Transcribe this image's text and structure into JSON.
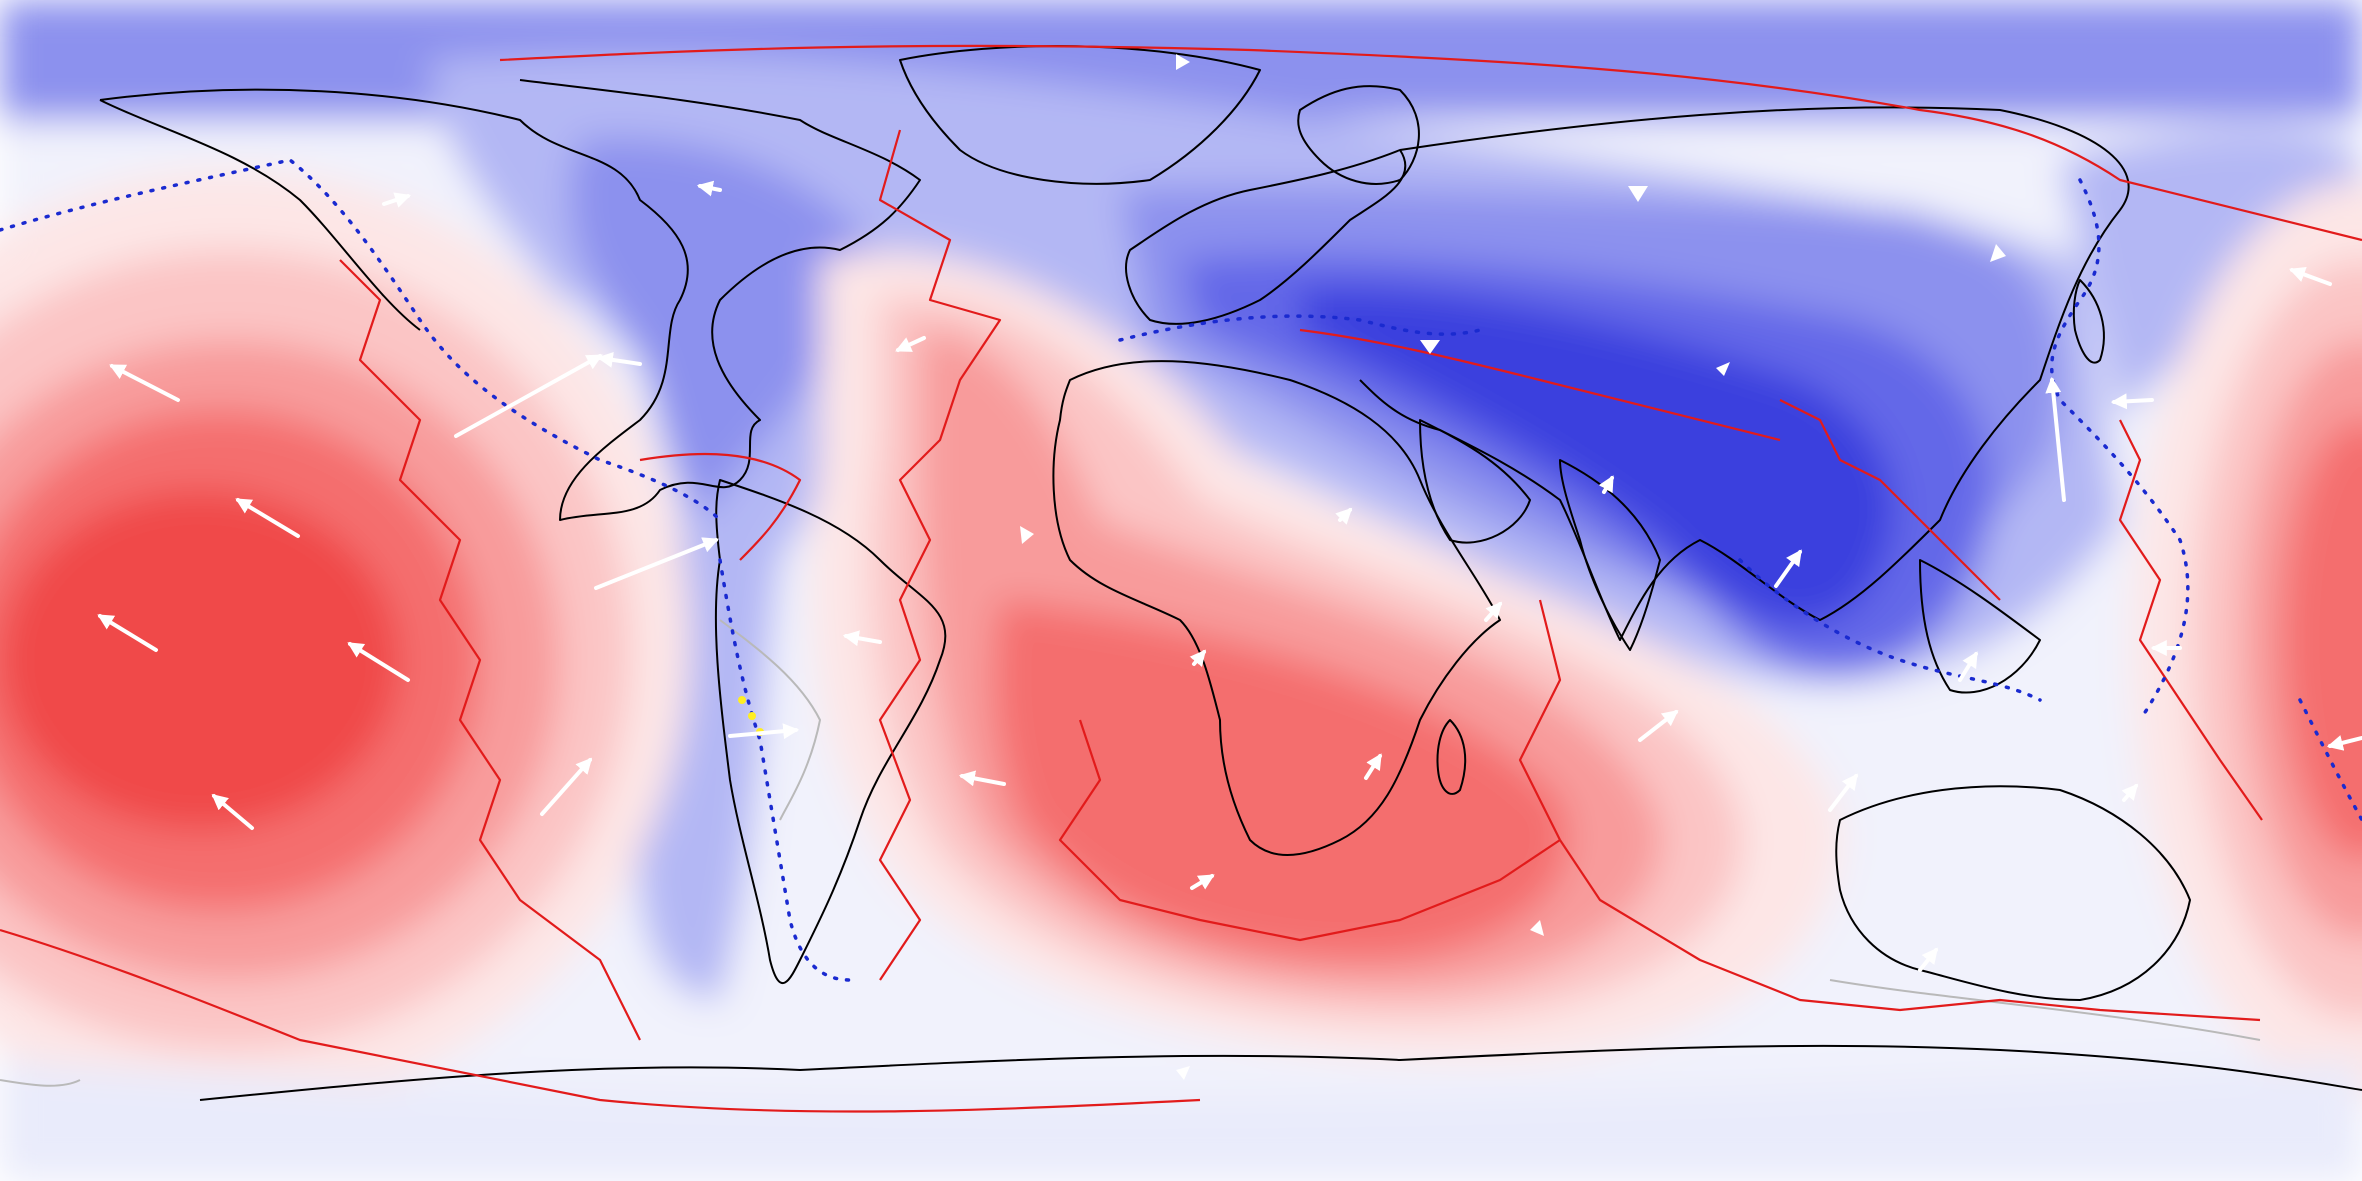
{
  "map": {
    "projection": "equirectangular",
    "colors": {
      "red_strong": "#f04848",
      "red_medium": "#f46e6e",
      "red_light": "#f89b9b",
      "red_pale": "#fbc5c5",
      "red_faint": "#fde6e6",
      "neutral": "#f1f2fc",
      "blue_faint": "#d9dbfa",
      "blue_light": "#b3b7f4",
      "blue_medium": "#8c91ee",
      "blue_strong": "#6468e8",
      "blue_deep": "#3a3fde",
      "plate_boundary": "#e21b1b",
      "subduction_zone": "#1a2ad0",
      "coastline": "#000000",
      "secondary_boundary": "#b9b9b9",
      "marker_yellow": "#ffee22",
      "velocity_arrow": "#ffffff"
    },
    "layers": [
      "contour-field",
      "coastlines",
      "plate-boundaries",
      "subduction-zones",
      "velocity-arrows"
    ]
  }
}
